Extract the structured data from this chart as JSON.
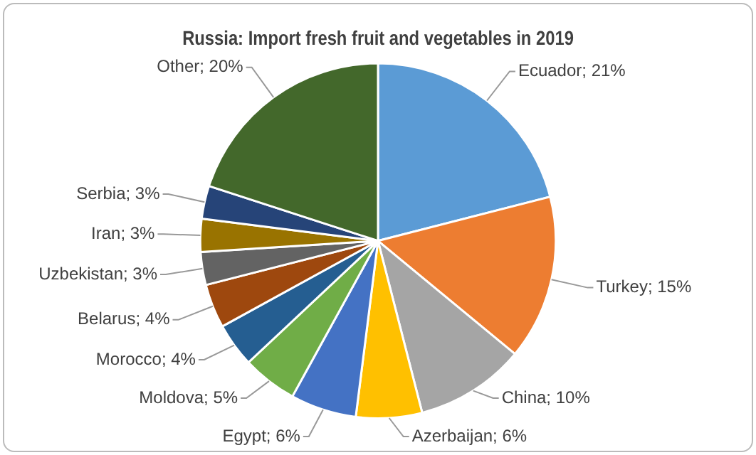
{
  "chart_data": {
    "type": "pie",
    "title": "Russia: Import fresh fruit and vegetables in 2019",
    "categories": [
      "Ecuador",
      "Turkey",
      "China",
      "Azerbaijan",
      "Egypt",
      "Moldova",
      "Morocco",
      "Belarus",
      "Uzbekistan",
      "Iran",
      "Serbia",
      "Other"
    ],
    "values": [
      21,
      15,
      10,
      6,
      6,
      5,
      4,
      4,
      3,
      3,
      3,
      20
    ],
    "value_labels": [
      "21%",
      "15%",
      "10%",
      "6%",
      "6%",
      "5%",
      "4%",
      "4%",
      "3%",
      "3%",
      "3%",
      "20%"
    ],
    "colors": [
      "#5b9bd5",
      "#ed7d31",
      "#a5a5a5",
      "#ffc000",
      "#4472c4",
      "#70ad47",
      "#255e91",
      "#9e480e",
      "#636363",
      "#997300",
      "#264478",
      "#43682b"
    ],
    "legend": false
  }
}
